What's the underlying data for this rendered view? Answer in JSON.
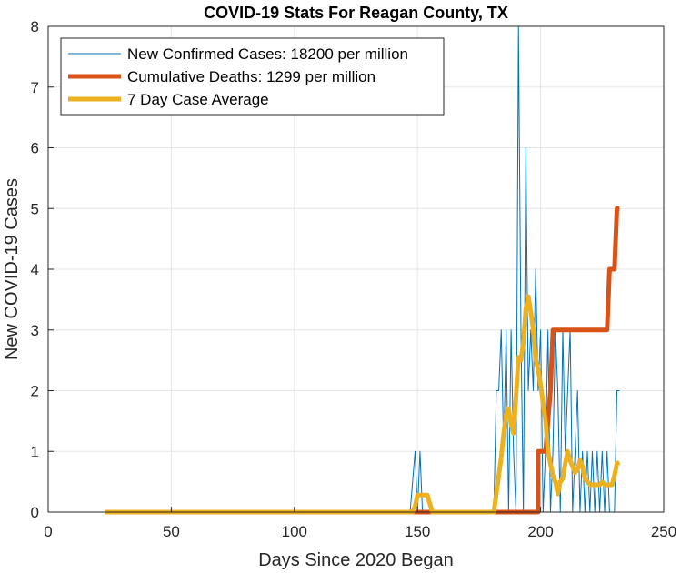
{
  "chart_data": {
    "type": "line",
    "title": "COVID-19 Stats For Reagan County, TX",
    "xlabel": "Days Since 2020 Began",
    "ylabel": "New COVID-19 Cases",
    "xlim": [
      0,
      250
    ],
    "ylim": [
      0,
      8
    ],
    "xticks": [
      0,
      50,
      100,
      150,
      200,
      250
    ],
    "yticks": [
      0,
      1,
      2,
      3,
      4,
      5,
      6,
      7,
      8
    ],
    "grid": true,
    "legend_position": "top-left",
    "series": [
      {
        "name": "New Confirmed Cases: 18200 per million",
        "color": "#0072BD",
        "width": 1,
        "points": [
          [
            23,
            0
          ],
          [
            147,
            0
          ],
          [
            149,
            1
          ],
          [
            150,
            0
          ],
          [
            151,
            1
          ],
          [
            152,
            0
          ],
          [
            181,
            0
          ],
          [
            182,
            2
          ],
          [
            183,
            2
          ],
          [
            184,
            3
          ],
          [
            185,
            1
          ],
          [
            186,
            3
          ],
          [
            187,
            0
          ],
          [
            188,
            3
          ],
          [
            189,
            1
          ],
          [
            190,
            0
          ],
          [
            191,
            8
          ],
          [
            192,
            3
          ],
          [
            193,
            0
          ],
          [
            194,
            6
          ],
          [
            195,
            2
          ],
          [
            196,
            3
          ],
          [
            197,
            2
          ],
          [
            198,
            4
          ],
          [
            199,
            2
          ],
          [
            200,
            3
          ],
          [
            201,
            0
          ],
          [
            202,
            1
          ],
          [
            203,
            3
          ],
          [
            204,
            0
          ],
          [
            205,
            1
          ],
          [
            206,
            3
          ],
          [
            207,
            2
          ],
          [
            208,
            0
          ],
          [
            209,
            3
          ],
          [
            210,
            1
          ],
          [
            211,
            2
          ],
          [
            212,
            3
          ],
          [
            213,
            0
          ],
          [
            214,
            1
          ],
          [
            215,
            2
          ],
          [
            216,
            0
          ],
          [
            217,
            1
          ],
          [
            218,
            0
          ],
          [
            219,
            1
          ],
          [
            220,
            0
          ],
          [
            221,
            1
          ],
          [
            222,
            0
          ],
          [
            223,
            1
          ],
          [
            224,
            0
          ],
          [
            225,
            1
          ],
          [
            226,
            0
          ],
          [
            227,
            1
          ],
          [
            228,
            0
          ],
          [
            229,
            0
          ],
          [
            230,
            0
          ],
          [
            231,
            2
          ],
          [
            232,
            2
          ]
        ]
      },
      {
        "name": "Cumulative Deaths: 1299 per million",
        "color": "#D95319",
        "width": 5,
        "points": [
          [
            23,
            0
          ],
          [
            199,
            0
          ],
          [
            199,
            1
          ],
          [
            202,
            1
          ],
          [
            204,
            2
          ],
          [
            205,
            3
          ],
          [
            227,
            3
          ],
          [
            228,
            4
          ],
          [
            230,
            4
          ],
          [
            231,
            5
          ],
          [
            232,
            5
          ]
        ]
      },
      {
        "name": "7 Day Case Average",
        "color": "#EDB120",
        "width": 5,
        "points": [
          [
            23,
            0
          ],
          [
            148,
            0
          ],
          [
            149,
            0.1
          ],
          [
            150,
            0.28
          ],
          [
            154,
            0.28
          ],
          [
            155,
            0.14
          ],
          [
            156,
            0
          ],
          [
            181,
            0
          ],
          [
            182,
            0.3
          ],
          [
            183,
            0.6
          ],
          [
            184,
            0.9
          ],
          [
            185,
            1.3
          ],
          [
            186,
            1.6
          ],
          [
            187,
            1.7
          ],
          [
            188,
            1.45
          ],
          [
            189,
            1.3
          ],
          [
            190,
            1.9
          ],
          [
            191,
            2.55
          ],
          [
            192,
            2.5
          ],
          [
            193,
            2.8
          ],
          [
            194,
            3.35
          ],
          [
            195,
            3.55
          ],
          [
            196,
            3.3
          ],
          [
            197,
            3.0
          ],
          [
            198,
            2.5
          ],
          [
            199,
            2.35
          ],
          [
            200,
            2.1
          ],
          [
            201,
            1.8
          ],
          [
            202,
            1.5
          ],
          [
            203,
            1.0
          ],
          [
            204,
            0.8
          ],
          [
            205,
            0.6
          ],
          [
            206,
            0.5
          ],
          [
            207,
            0.3
          ],
          [
            208,
            0.5
          ],
          [
            209,
            0.55
          ],
          [
            210,
            0.8
          ],
          [
            211,
            1.0
          ],
          [
            212,
            0.85
          ],
          [
            213,
            0.75
          ],
          [
            214,
            0.65
          ],
          [
            215,
            0.7
          ],
          [
            216,
            0.85
          ],
          [
            217,
            0.75
          ],
          [
            218,
            0.55
          ],
          [
            219,
            0.5
          ],
          [
            220,
            0.45
          ],
          [
            224,
            0.45
          ],
          [
            225,
            0.5
          ],
          [
            226,
            0.45
          ],
          [
            229,
            0.45
          ],
          [
            230,
            0.6
          ],
          [
            231,
            0.8
          ],
          [
            232,
            0.82
          ]
        ]
      }
    ]
  }
}
